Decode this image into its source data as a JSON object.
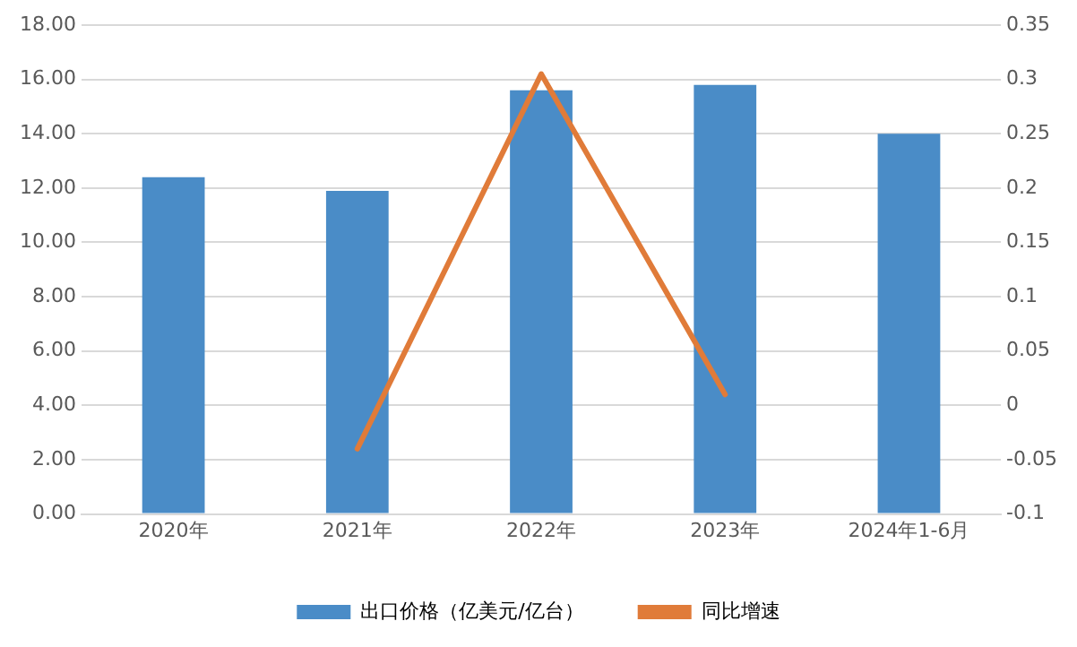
{
  "chart_data": {
    "type": "bar",
    "categories": [
      "2020年",
      "2021年",
      "2022年",
      "2023年",
      "2024年1-6月"
    ],
    "series": [
      {
        "name": "出口价格（亿美元/亿台）",
        "color": "#4a8cc7",
        "values": [
          12.4,
          11.9,
          15.6,
          15.8,
          14.0
        ]
      },
      {
        "name": "同比增速",
        "type": "line",
        "axis": "y2",
        "color": "#e07b39",
        "values": [
          null,
          -0.04,
          0.305,
          0.01,
          null
        ]
      }
    ],
    "ylim": [
      0,
      18
    ],
    "yticks": [
      {
        "value": 0,
        "label": "0.00"
      },
      {
        "value": 2,
        "label": "2.00"
      },
      {
        "value": 4,
        "label": "4.00"
      },
      {
        "value": 6,
        "label": "6.00"
      },
      {
        "value": 8,
        "label": "8.00"
      },
      {
        "value": 10,
        "label": "10.00"
      },
      {
        "value": 12,
        "label": "12.00"
      },
      {
        "value": 14,
        "label": "14.00"
      },
      {
        "value": 16,
        "label": "16.00"
      },
      {
        "value": 18,
        "label": "18.00"
      }
    ],
    "y2lim": [
      -0.1,
      0.35
    ],
    "y2ticks": [
      -0.1,
      -0.05,
      0,
      0.05,
      0.1,
      0.15,
      0.2,
      0.25,
      0.3,
      0.35
    ],
    "grid": "y",
    "legend": "bottom",
    "marker": "none",
    "line_style": "solid"
  }
}
